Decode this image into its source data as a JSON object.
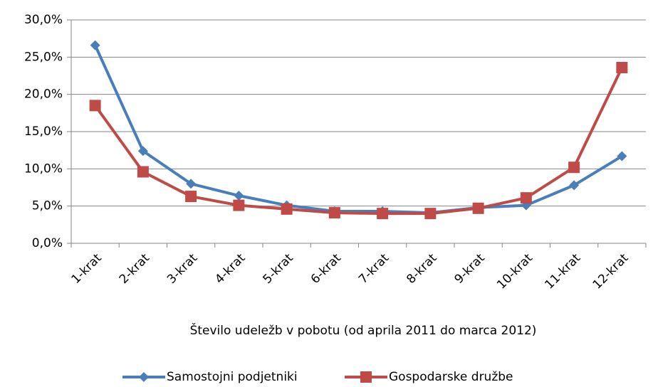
{
  "chart_data": {
    "type": "line",
    "x_label": "Število udeležb v pobotu (od aprila 2011 do marca 2012)",
    "categories": [
      "1-krat",
      "2-krat",
      "3-krat",
      "4-krat",
      "5-krat",
      "6-krat",
      "7-krat",
      "8-krat",
      "9-krat",
      "10-krat",
      "11-krat",
      "12-krat"
    ],
    "series": [
      {
        "name": "Samostojni podjetniki",
        "color": "#4a7ebb",
        "marker": "diamond",
        "values": [
          26.6,
          12.4,
          8.0,
          6.4,
          5.1,
          4.3,
          4.3,
          4.1,
          4.8,
          5.1,
          7.8,
          11.7
        ]
      },
      {
        "name": "Gospodarske družbe",
        "color": "#be4b48",
        "marker": "square",
        "values": [
          18.5,
          9.6,
          6.3,
          5.1,
          4.6,
          4.1,
          4.0,
          4.0,
          4.7,
          6.1,
          10.2,
          23.6
        ]
      }
    ],
    "ylim": [
      0,
      30
    ],
    "yticks": [
      {
        "value": 0,
        "label": "0,0%"
      },
      {
        "value": 5,
        "label": "5,0%"
      },
      {
        "value": 10,
        "label": "10,0%"
      },
      {
        "value": 15,
        "label": "15,0%"
      },
      {
        "value": 20,
        "label": "20,0%"
      },
      {
        "value": 25,
        "label": "25,0%"
      },
      {
        "value": 30,
        "label": "30,0%"
      }
    ],
    "grid": true,
    "legend": "bottom"
  }
}
